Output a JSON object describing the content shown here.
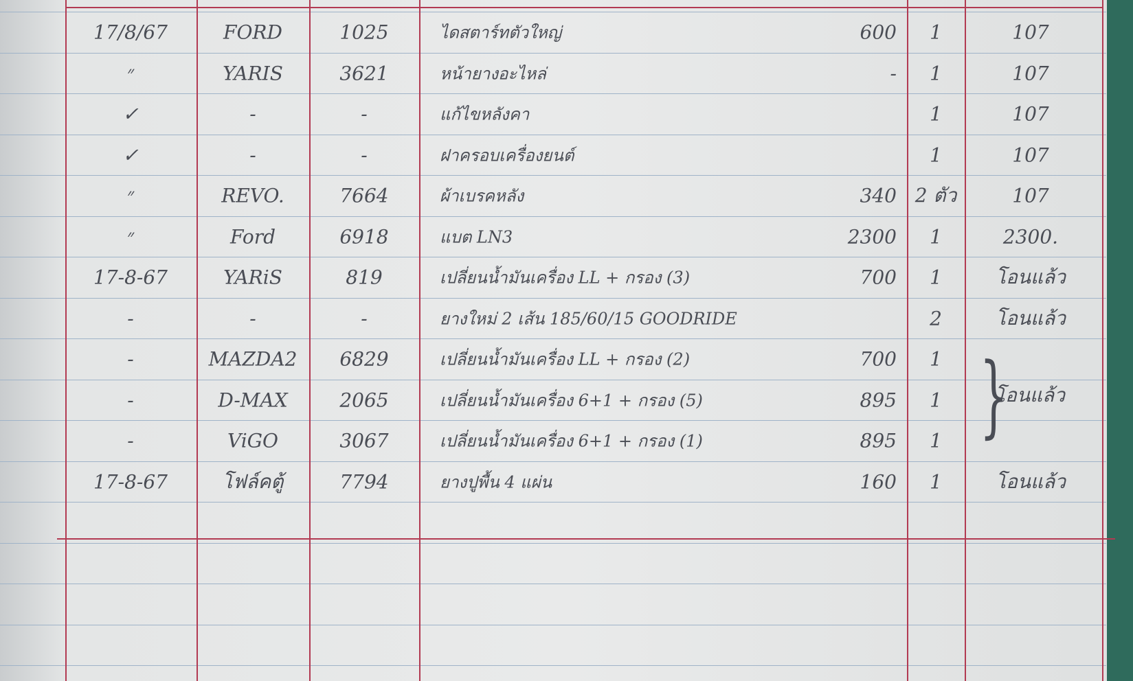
{
  "table": {
    "rows": [
      {
        "date": "17/8/67",
        "car": "FORD",
        "plate": "1025",
        "item": "ไดสตาร์ทตัวใหญ่",
        "price": 600,
        "qty": "1",
        "payment": "107"
      },
      {
        "date": "״",
        "car": "YARIS",
        "plate": "3621",
        "item": "หน้ายางอะไหล่",
        "price": "-",
        "qty": "1",
        "payment": "107"
      },
      {
        "date": "✓",
        "car": "-",
        "plate": "-",
        "item": "แก้ไขหลังคา",
        "qty": "1",
        "payment": "107"
      },
      {
        "date": "✓",
        "car": "-",
        "plate": "-",
        "item": "ฝาครอบเครื่องยนต์",
        "qty": "1",
        "payment": "107"
      },
      {
        "date": "״",
        "car": "REVO.",
        "plate": "7664",
        "item": "ผ้าเบรคหลัง",
        "price": 340,
        "qty": "2 ตัว",
        "payment": "107"
      },
      {
        "date": "״",
        "car": "Ford",
        "plate": "6918",
        "item": "แบต LN3",
        "price": 2300,
        "qty": "1",
        "payment": "2300."
      },
      {
        "date": "17-8-67",
        "car": "YARiS",
        "plate": "819",
        "item": "เปลี่ยนน้ำมันเครื่อง LL + กรอง (3)",
        "price": 700,
        "qty": "1",
        "payment": "โอนแล้ว"
      },
      {
        "date": "-",
        "car": "-",
        "plate": "-",
        "item": "ยางใหม่ 2 เส้น 185/60/15 GOODRIDE",
        "qty": "2",
        "payment": "โอนแล้ว"
      },
      {
        "date": "-",
        "car": "MAZDA2",
        "plate": "6829",
        "item": "เปลี่ยนน้ำมันเครื่อง LL + กรอง (2)",
        "price": 700,
        "qty": "1"
      },
      {
        "date": "-",
        "car": "D-MAX",
        "plate": "2065",
        "item": "เปลี่ยนน้ำมันเครื่อง 6+1 + กรอง (5)",
        "price": 895,
        "qty": "1"
      },
      {
        "date": "-",
        "car": "ViGO",
        "plate": "3067",
        "item": "เปลี่ยนน้ำมันเครื่อง 6+1 + กรอง (1)",
        "price": 895,
        "qty": "1"
      },
      {
        "date": "17-8-67",
        "car": "โฟล์คตู้",
        "plate": "7794",
        "item": "ยางปูพื้น 4 แผ่น",
        "price": 160,
        "qty": "1",
        "payment": "โอนแล้ว"
      }
    ],
    "group_note": "โอนแล้ว"
  }
}
